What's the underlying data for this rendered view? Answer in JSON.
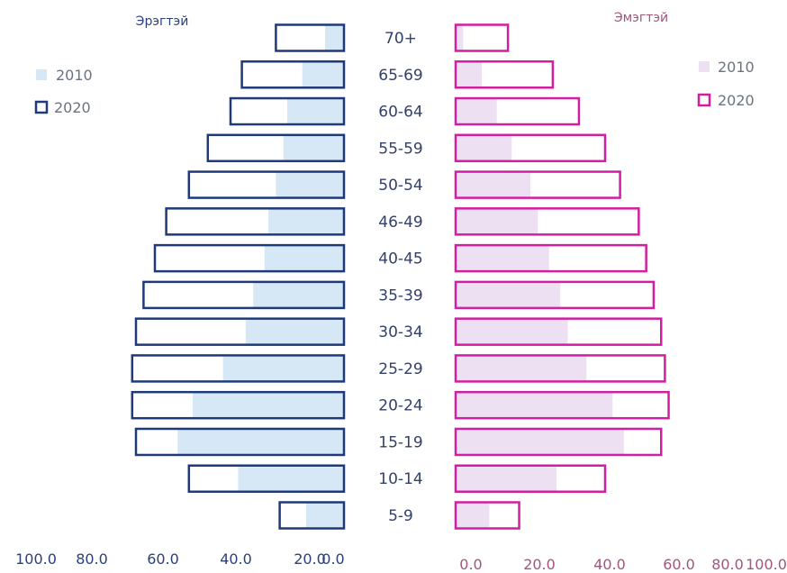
{
  "colors": {
    "male_2010_fill": "#d6e7f5",
    "male_2020_stroke": "#1f3a78",
    "female_2010_fill": "#ece0f2",
    "female_2020_stroke": "#d21ea0",
    "male_text": "#2b3f7a",
    "female_text": "#a0567f",
    "age_text": "#33406a"
  },
  "chart_data": {
    "type": "bar",
    "orientation": "horizontal",
    "chart_kind": "population pyramid",
    "categories": [
      "70+",
      "65-69",
      "60-64",
      "55-59",
      "50-54",
      "46-49",
      "40-45",
      "35-39",
      "30-34",
      "25-29",
      "20-24",
      "15-19",
      "10-14",
      "5-9"
    ],
    "male": {
      "title": "Эрэгтэй",
      "xlim": [
        0,
        100
      ],
      "ticks": [
        "100.0",
        "80.0",
        "60.0",
        "40.0",
        "20.0",
        "0.0"
      ],
      "series": [
        {
          "name": "2010",
          "style": "filled",
          "values": [
            5,
            11,
            15,
            16,
            18,
            20,
            21,
            24,
            26,
            32,
            40,
            44,
            28,
            10
          ]
        },
        {
          "name": "2020",
          "style": "outline",
          "values": [
            18,
            27,
            30,
            36,
            41,
            47,
            50,
            53,
            55,
            56,
            56,
            55,
            41,
            17
          ]
        }
      ]
    },
    "female": {
      "title": "Эмэгтэй",
      "xlim": [
        0,
        100
      ],
      "ticks": [
        "0.0",
        "20.0",
        "40.0",
        "60.0",
        "80.0",
        "100.0"
      ],
      "series": [
        {
          "name": "2010",
          "style": "filled",
          "values": [
            2,
            7,
            11,
            15,
            20,
            22,
            25,
            28,
            30,
            35,
            42,
            45,
            27,
            9
          ]
        },
        {
          "name": "2020",
          "style": "outline",
          "values": [
            14,
            26,
            33,
            40,
            44,
            49,
            51,
            53,
            55,
            56,
            57,
            55,
            40,
            17
          ]
        }
      ]
    }
  }
}
